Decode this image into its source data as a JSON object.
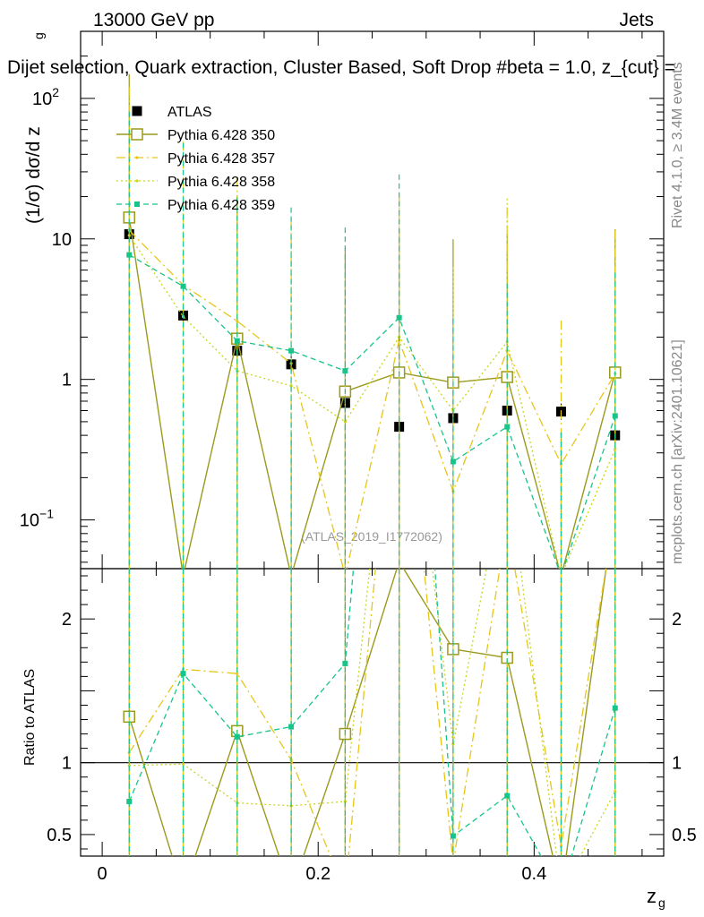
{
  "header": {
    "left": "13000 GeV pp",
    "right": "Jets",
    "title": "Dijet selection, Quark extraction, Cluster Based, Soft Drop #beta = 1.0, z_{cut} =",
    "side_label": "Rivet 4.1.0, ≥ 3.4M events",
    "side_label2": "mcplots.cern.ch [arXiv:2401.10621]",
    "watermark": "(ATLAS_2019_I1772062)"
  },
  "colors": {
    "atlas": "#000000",
    "s350": "#9a9a1e",
    "s357": "#e6c619",
    "s358": "#c8d61e",
    "s359": "#17c48a"
  },
  "chart_data": {
    "type": "scatter",
    "xlabel_main": "z",
    "xlabel_sub": "g",
    "ylabel_top": "(1/σ) dσ/d z",
    "ylabel_top_sub": "g",
    "ylabel_bottom": "Ratio to ATLAS",
    "xlim": [
      -0.02,
      0.52
    ],
    "ylim_top": [
      0.045,
      300
    ],
    "ylim_bottom": [
      0.35,
      2.35
    ],
    "x_ticks": [
      {
        "v": 0,
        "label": "0"
      },
      {
        "v": 0.2,
        "label": "0.2"
      },
      {
        "v": 0.4,
        "label": "0.4"
      }
    ],
    "y_ticks_top": [
      {
        "v": 0.1,
        "base": "10",
        "exp": "−1"
      },
      {
        "v": 1,
        "base": "1",
        "exp": ""
      },
      {
        "v": 10,
        "base": "10",
        "exp": ""
      },
      {
        "v": 100,
        "base": "10",
        "exp": "2"
      }
    ],
    "y_ticks_bottom": [
      {
        "v": 0.5,
        "label": "0.5"
      },
      {
        "v": 1,
        "label": "1"
      },
      {
        "v": 2,
        "label": "2"
      }
    ],
    "x": [
      0.025,
      0.075,
      0.125,
      0.175,
      0.225,
      0.275,
      0.325,
      0.375,
      0.425,
      0.475
    ],
    "series": [
      {
        "name": "ATLAS",
        "key": "atlas",
        "values": [
          10.8,
          2.85,
          1.6,
          1.28,
          0.68,
          0.46,
          0.53,
          0.6,
          0.59,
          0.4
        ],
        "ratio": [
          1,
          1,
          1,
          1,
          1,
          1,
          1,
          1,
          1,
          1
        ]
      },
      {
        "name": "Pythia 6.428 350",
        "key": "s350",
        "values": [
          14.2,
          0.04,
          1.95,
          0.04,
          0.82,
          1.12,
          0.95,
          1.04,
          0.04,
          1.12
        ],
        "ratio": [
          1.32,
          0.1,
          1.22,
          0.1,
          1.2,
          2.4,
          1.79,
          1.73,
          0.1,
          2.8
        ]
      },
      {
        "name": "Pythia 6.428 357",
        "key": "s357",
        "values": [
          11.5,
          4.7,
          2.6,
          1.3,
          0.04,
          1.9,
          0.16,
          1.6,
          0.25,
          1.1
        ],
        "ratio": [
          1.07,
          1.65,
          1.62,
          1.02,
          0.1,
          4.1,
          0.3,
          2.67,
          0.42,
          2.75
        ]
      },
      {
        "name": "Pythia 6.428 358",
        "key": "s358",
        "values": [
          10.6,
          2.8,
          1.15,
          0.9,
          0.5,
          2.0,
          0.6,
          1.85,
          0.04,
          0.32
        ],
        "ratio": [
          0.98,
          0.99,
          0.72,
          0.7,
          0.73,
          4.3,
          1.13,
          3.1,
          0.1,
          0.8
        ]
      },
      {
        "name": "Pythia 6.428 359",
        "key": "s359",
        "values": [
          7.7,
          4.6,
          1.88,
          1.6,
          1.15,
          2.75,
          0.26,
          0.46,
          0.04,
          0.55
        ],
        "ratio": [
          0.73,
          1.62,
          1.18,
          1.25,
          1.69,
          6.0,
          0.49,
          0.77,
          0.1,
          1.38
        ]
      }
    ],
    "legend": {
      "placement": "top-left",
      "entries": [
        "ATLAS",
        "Pythia 6.428 350",
        "Pythia 6.428 357",
        "Pythia 6.428 358",
        "Pythia 6.428 359"
      ]
    }
  }
}
